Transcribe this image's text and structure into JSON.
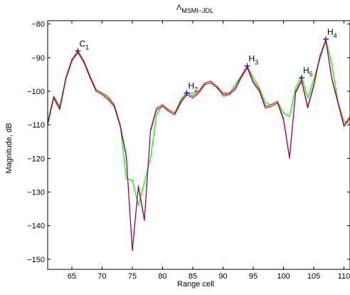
{
  "chart_data": {
    "type": "line",
    "title": "Λ",
    "title_subscript": "MSMI−JDL",
    "xlabel": "Range cell",
    "ylabel": "Magnitude, dB",
    "xlim": [
      61,
      111
    ],
    "ylim": [
      -153,
      -79
    ],
    "grid": false,
    "legend": "none",
    "xticks": [
      65,
      70,
      75,
      80,
      85,
      90,
      95,
      100,
      105,
      110
    ],
    "yticks": [
      -80,
      -90,
      -100,
      -110,
      -120,
      -130,
      -140,
      -150
    ],
    "series": [
      {
        "color": "#00ff00",
        "x": [
          61,
          62,
          63,
          64,
          65,
          66,
          67,
          68,
          69,
          70,
          71,
          72,
          73,
          74,
          75,
          76,
          77,
          78,
          79,
          80,
          81,
          82,
          83,
          84,
          85,
          86,
          87,
          88,
          89,
          90,
          91,
          92,
          93,
          94,
          95,
          96,
          97,
          98,
          99,
          100,
          101,
          102,
          103,
          104,
          105,
          106,
          107,
          108,
          109,
          110,
          111
        ],
        "y": [
          -109,
          -101.5,
          -104.5,
          -96,
          -90.5,
          -88,
          -91,
          -95.5,
          -99.5,
          -100.5,
          -101.5,
          -104,
          -110,
          -126,
          -126.5,
          -134,
          -127,
          -120,
          -107,
          -104,
          -105.5,
          -106.5,
          -102.5,
          -100.5,
          -100.5,
          -100,
          -97.5,
          -97,
          -98.5,
          -101.5,
          -101,
          -98,
          -95.5,
          -92.5,
          -96,
          -99,
          -103.5,
          -104,
          -103,
          -106.5,
          -107.5,
          -99,
          -95.5,
          -102,
          -96.5,
          -90.5,
          -84.5,
          -92,
          -103,
          -109,
          -109.5
        ]
      },
      {
        "color": "#ff0000",
        "x": [
          61,
          62,
          63,
          64,
          65,
          66,
          67,
          68,
          69,
          70,
          71,
          72,
          73,
          74,
          75,
          76,
          77,
          78,
          79,
          80,
          81,
          82,
          83,
          84,
          85,
          86,
          87,
          88,
          89,
          90,
          91,
          92,
          93,
          94,
          95,
          96,
          97,
          98,
          99,
          100,
          101,
          102,
          103,
          104,
          105,
          106,
          107,
          108,
          109,
          110,
          111
        ],
        "y": [
          -109.5,
          -101.5,
          -105,
          -96,
          -90.5,
          -88,
          -91,
          -95.5,
          -99.5,
          -100.5,
          -102,
          -104,
          -110,
          -119,
          -147,
          -128,
          -138,
          -111.5,
          -105,
          -104,
          -105.5,
          -106.5,
          -103,
          -100.5,
          -101.5,
          -100,
          -97.5,
          -97,
          -98.5,
          -100.5,
          -100.5,
          -99,
          -95.5,
          -92.5,
          -97,
          -99.5,
          -104.5,
          -104,
          -103,
          -108,
          -119.5,
          -100,
          -96.5,
          -104.5,
          -98,
          -89.5,
          -84.5,
          -96,
          -103,
          -110,
          -107.5
        ]
      },
      {
        "color": "#800080",
        "x": [
          61,
          62,
          63,
          64,
          65,
          66,
          67,
          68,
          69,
          70,
          71,
          72,
          73,
          74,
          75,
          76,
          77,
          78,
          79,
          80,
          81,
          82,
          83,
          84,
          85,
          86,
          87,
          88,
          89,
          90,
          91,
          92,
          93,
          94,
          95,
          96,
          97,
          98,
          99,
          100,
          101,
          102,
          103,
          104,
          105,
          106,
          107,
          108,
          109,
          110,
          111
        ],
        "y": [
          -110,
          -102,
          -105.5,
          -96.5,
          -91,
          -88.5,
          -91.5,
          -96,
          -100,
          -101,
          -102.5,
          -104.5,
          -110.5,
          -119.5,
          -147.5,
          -128.5,
          -138.5,
          -112,
          -105.5,
          -104.5,
          -106,
          -107,
          -103.5,
          -101,
          -102,
          -100.5,
          -98,
          -97.5,
          -99,
          -101,
          -101,
          -99.5,
          -96,
          -93,
          -97.5,
          -100,
          -105,
          -104.5,
          -103.5,
          -108.5,
          -120,
          -100.5,
          -97,
          -105,
          -98.5,
          -90,
          -85,
          -96.5,
          -103.5,
          -110.5,
          -108
        ]
      }
    ],
    "markers": [
      {
        "label": "C",
        "sub": "1",
        "x": 66,
        "y": -88
      },
      {
        "label": "H",
        "sub": "2",
        "x": 84,
        "y": -100.5
      },
      {
        "label": "H",
        "sub": "3",
        "x": 94,
        "y": -92.5
      },
      {
        "label": "H",
        "sub": "5",
        "x": 103,
        "y": -96
      },
      {
        "label": "H",
        "sub": "4",
        "x": 107,
        "y": -84.5
      }
    ],
    "marker_color": "#0000cc"
  }
}
